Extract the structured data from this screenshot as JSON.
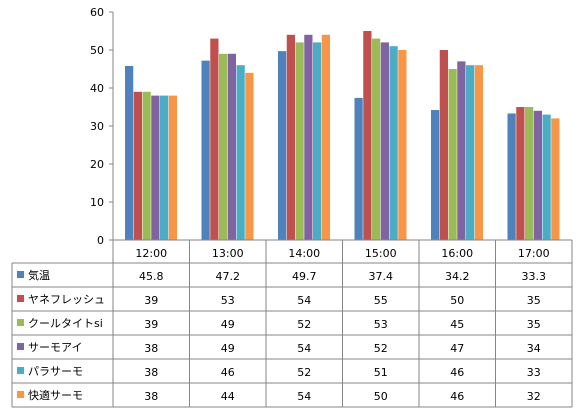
{
  "chart_data": {
    "type": "bar",
    "categories": [
      "12:00",
      "13:00",
      "14:00",
      "15:00",
      "16:00",
      "17:00"
    ],
    "ylim": [
      0,
      60
    ],
    "yticks": [
      0,
      10,
      20,
      30,
      40,
      50,
      60
    ],
    "grid": false,
    "legend": "data-table-left",
    "series": [
      {
        "name": "気温",
        "color": "#4f81bd",
        "values": [
          45.8,
          47.2,
          49.7,
          37.4,
          34.2,
          33.3
        ]
      },
      {
        "name": "ヤネフレッシュ",
        "color": "#c0504d",
        "values": [
          39,
          53,
          54,
          55,
          50,
          35
        ]
      },
      {
        "name": "クールタイトsi",
        "color": "#9bbb59",
        "values": [
          39,
          49,
          52,
          53,
          45,
          35
        ]
      },
      {
        "name": "サーモアイ",
        "color": "#8064a2",
        "values": [
          38,
          49,
          54,
          52,
          47,
          34
        ]
      },
      {
        "name": "パラサーモ",
        "color": "#4bacc6",
        "values": [
          38,
          46,
          52,
          51,
          46,
          33
        ]
      },
      {
        "name": "快適サーモ",
        "color": "#f79646",
        "values": [
          38,
          44,
          54,
          50,
          46,
          32
        ]
      }
    ]
  }
}
